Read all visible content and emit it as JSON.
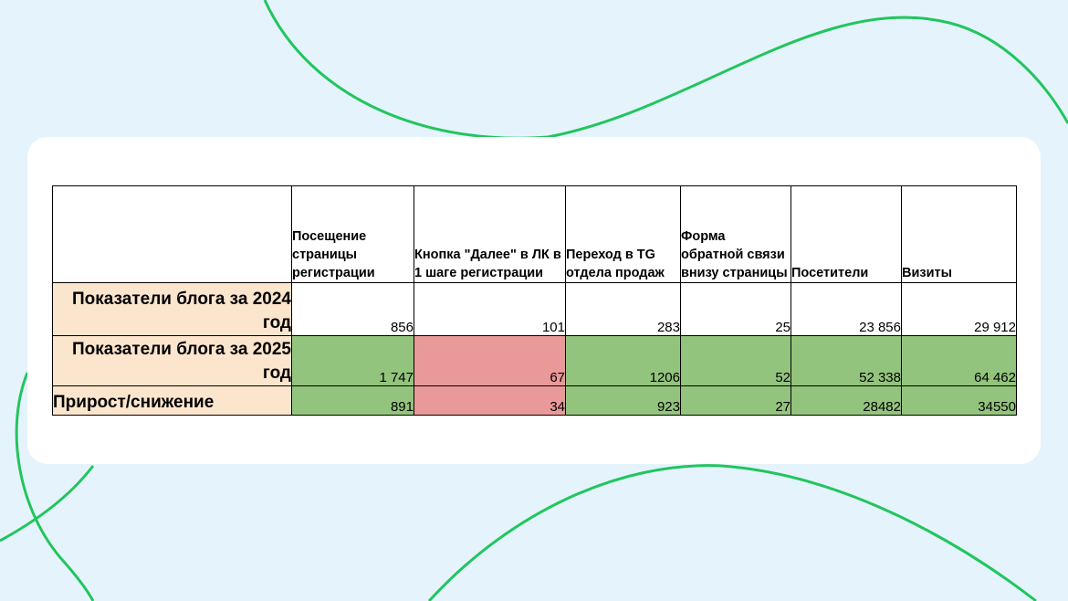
{
  "table": {
    "columns": [
      "Посещение страницы регистрации",
      "Кнопка \"Далее\" в ЛК в 1 шаге регистрации",
      "Переход в TG отдела продаж",
      "Форма обратной связи внизу страницы",
      "Посетители",
      "Визиты"
    ],
    "rows": [
      {
        "label": "Показатели блога за 2024 год",
        "values": [
          "856",
          "101",
          "283",
          "25",
          "23 856",
          "29 912"
        ]
      },
      {
        "label": "Показатели блога за 2025 год",
        "values": [
          "1 747",
          "67",
          "1206",
          "52",
          "52 338",
          "64 462"
        ]
      },
      {
        "label": "Прирост/снижение",
        "values": [
          "891",
          "34",
          "923",
          "27",
          "28482",
          "34550"
        ]
      }
    ]
  },
  "colors": {
    "background": "#e5f4fc",
    "wave": "#22c55e",
    "label_fill": "#fce5cd",
    "positive_fill": "#93c47d",
    "negative_fill": "#ea9999"
  }
}
